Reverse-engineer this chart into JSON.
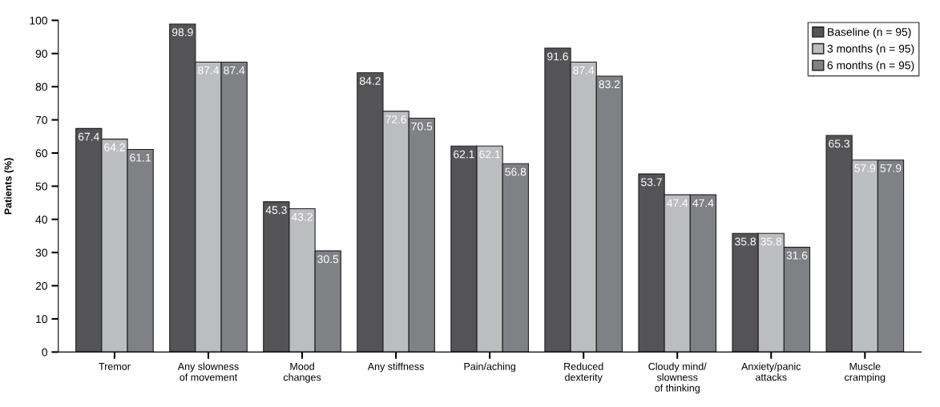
{
  "chart_data": {
    "type": "bar",
    "ylabel": "Patients (%)",
    "categories": [
      "Tremor",
      "Any slowness\nof movement",
      "Mood\nchanges",
      "Any stiffness",
      "Pain/aching",
      "Reduced\ndexterity",
      "Cloudy mind/\nslowness\nof thinking",
      "Anxiety/panic\nattacks",
      "Muscle\ncramping"
    ],
    "series": [
      {
        "name": "Baseline (n = 95)",
        "color": "#545456",
        "values": [
          67.4,
          98.9,
          45.3,
          84.2,
          62.1,
          91.6,
          53.7,
          35.8,
          65.3
        ]
      },
      {
        "name": "3 months (n = 95)",
        "color": "#bcbdbf",
        "values": [
          64.2,
          87.4,
          43.2,
          72.6,
          62.1,
          87.4,
          47.4,
          35.8,
          57.9
        ]
      },
      {
        "name": "6 months (n = 95)",
        "color": "#808184",
        "values": [
          61.1,
          87.4,
          30.5,
          70.5,
          56.8,
          83.2,
          47.4,
          31.6,
          57.9
        ]
      }
    ],
    "ylim": [
      0,
      100
    ],
    "yticks": [
      0,
      10,
      20,
      30,
      40,
      50,
      60,
      70,
      80,
      90,
      100
    ],
    "data_labels": true,
    "grid": false,
    "legend": "top right"
  }
}
